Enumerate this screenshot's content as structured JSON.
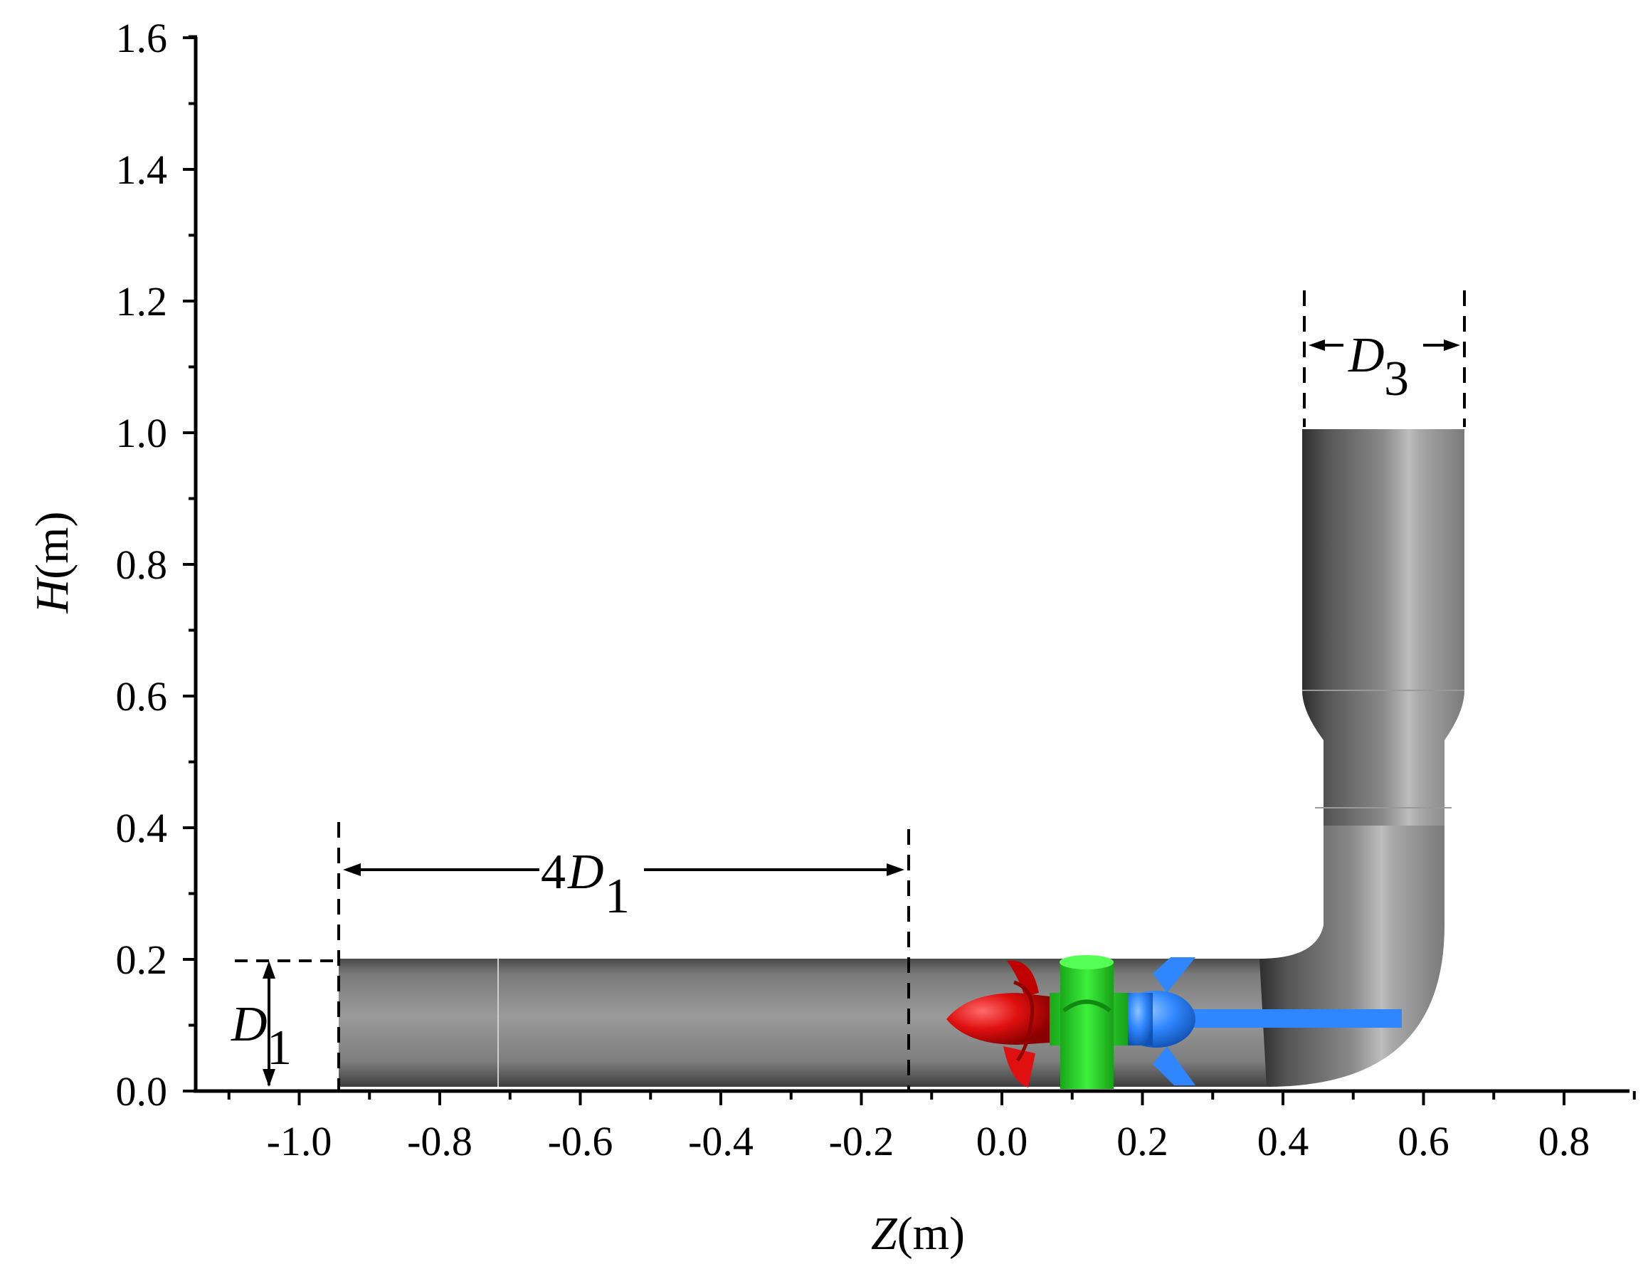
{
  "axes": {
    "x": {
      "title_var": "Z",
      "title_unit": "(m)",
      "range": [
        -1.1,
        0.9
      ],
      "ticks": [
        {
          "value": -1.0,
          "label": "-1.0"
        },
        {
          "value": -0.8,
          "label": "-0.8"
        },
        {
          "value": -0.6,
          "label": "-0.6"
        },
        {
          "value": -0.4,
          "label": "-0.4"
        },
        {
          "value": -0.2,
          "label": "-0.2"
        },
        {
          "value": 0.0,
          "label": "0.0"
        },
        {
          "value": 0.2,
          "label": "0.2"
        },
        {
          "value": 0.4,
          "label": "0.4"
        },
        {
          "value": 0.6,
          "label": "0.6"
        },
        {
          "value": 0.8,
          "label": "0.8"
        }
      ]
    },
    "y": {
      "title_var": "H",
      "title_unit": "(m)",
      "range": [
        0.0,
        1.6
      ],
      "ticks": [
        {
          "value": 0.0,
          "label": "0.0"
        },
        {
          "value": 0.2,
          "label": "0.2"
        },
        {
          "value": 0.4,
          "label": "0.4"
        },
        {
          "value": 0.6,
          "label": "0.6"
        },
        {
          "value": 0.8,
          "label": "0.8"
        },
        {
          "value": 1.0,
          "label": "1.0"
        },
        {
          "value": 1.2,
          "label": "1.2"
        },
        {
          "value": 1.4,
          "label": "1.4"
        },
        {
          "value": 1.6,
          "label": "1.6"
        }
      ]
    }
  },
  "dimensions": {
    "d1": {
      "prefix": "",
      "letter": "D",
      "sub": "1"
    },
    "four_d1": {
      "prefix": "4",
      "letter": "D",
      "sub": "1"
    },
    "d3": {
      "prefix": "",
      "letter": "D",
      "sub": "3"
    }
  },
  "colors": {
    "pipe": "#8a8a8a",
    "impeller": "#e01010",
    "guide_vane": "#22d022",
    "outlet_hub": "#2f86ff"
  }
}
